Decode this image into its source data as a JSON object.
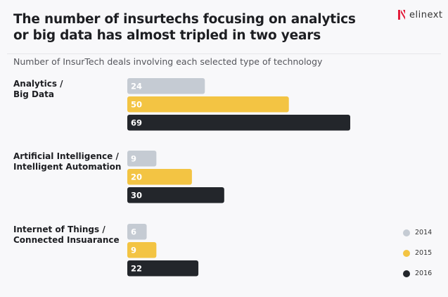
{
  "header": {
    "title_line1": "The number of insurtechs focusing on analytics",
    "title_line2": "or big data has almost tripled in two years",
    "subtitle": "Number of InsurTech deals involving each selected type of technology",
    "logo_text": "elinext"
  },
  "chart_data": {
    "type": "bar",
    "orientation": "horizontal",
    "title": "The number of insurtechs focusing on analytics or big data has almost tripled in two years",
    "subtitle": "Number of InsurTech deals involving each selected type of technology",
    "categories": [
      {
        "line1": "Analytics /",
        "line2": "Big Data"
      },
      {
        "line1": "Artificial Intelligence /",
        "line2": "Intelligent Automation"
      },
      {
        "line1": "Internet of Things /",
        "line2": "Connected Insuarance"
      }
    ],
    "series": [
      {
        "name": "2014",
        "color": "#c5cbd3",
        "label_color": "#ffffff",
        "values": [
          24,
          9,
          6
        ]
      },
      {
        "name": "2015",
        "color": "#f3c443",
        "label_color": "#ffffff",
        "values": [
          50,
          20,
          9
        ]
      },
      {
        "name": "2016",
        "color": "#23262b",
        "label_color": "#ffffff",
        "values": [
          69,
          30,
          22
        ]
      }
    ],
    "xlim": [
      0,
      69
    ],
    "grid": false,
    "legend": "bottom-right",
    "data_labels": true
  }
}
